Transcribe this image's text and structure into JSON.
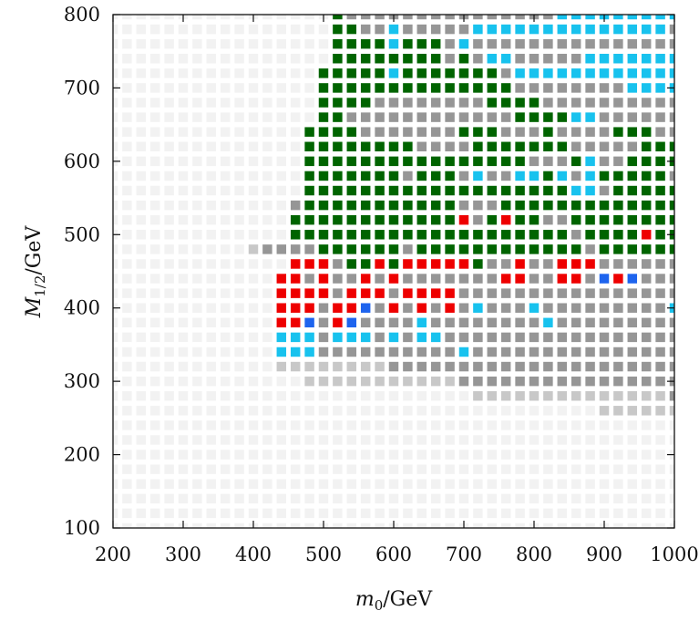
{
  "chart_data": {
    "type": "heatmap",
    "title": "",
    "xlabel": "m_0/GeV",
    "ylabel": "M_1/2/GeV",
    "xlabel_parts": {
      "main": "m",
      "sub": "0",
      "unit": "/GeV"
    },
    "ylabel_parts": {
      "main": "M",
      "sub": "1/2",
      "unit": "/GeV"
    },
    "xlim": [
      200,
      1000
    ],
    "ylim": [
      100,
      800
    ],
    "xticks": [
      200,
      300,
      400,
      500,
      600,
      700,
      800,
      900,
      1000
    ],
    "yticks": [
      100,
      200,
      300,
      400,
      500,
      600,
      700,
      800
    ],
    "grid_x": {
      "start": 200,
      "step": 20,
      "count": 41
    },
    "grid_y": {
      "start": 100,
      "step": 20,
      "count": 36
    },
    "categories": [
      {
        "code": "",
        "color": "#f2f2f2"
      },
      {
        "code": "G",
        "color": "#969696"
      },
      {
        "code": "L",
        "color": "#c8c8c8"
      },
      {
        "code": "D",
        "color": "#006400"
      },
      {
        "code": "R",
        "color": "#ee0000"
      },
      {
        "code": "C",
        "color": "#18c2ee"
      },
      {
        "code": "B",
        "color": "#1e64ee"
      },
      {
        "code": "Y",
        "color": "#f4f44c"
      }
    ],
    "default_code": "",
    "rows": [
      {
        "y": 800,
        "x_start": 520,
        "cells": "DGGGGGGGGGGGGGGGCCCCCCCCCCC"
      },
      {
        "y": 780,
        "x_start": 520,
        "cells": "DDGGCGGGGGCCCCCCCCCCCCCCGGG"
      },
      {
        "y": 760,
        "x_start": 520,
        "cells": "DDDDCDDDGCGGGGGGGGGGGGGGGGGG"
      },
      {
        "y": 740,
        "x_start": 520,
        "cells": "DDDDDDDDGDGCCGGGGGCCCCCCCCCC"
      },
      {
        "y": 720,
        "x_start": 500,
        "cells": "DDDDDCDDDDDDDGCCCCCCCCCCCCCGG"
      },
      {
        "y": 700,
        "x_start": 500,
        "cells": "DDDDDDDDDDDDDDGGGGGGGGCCCCCCCCC"
      },
      {
        "y": 680,
        "x_start": 500,
        "cells": "DDDDGGGGGGGGDDDDGGGGGGGGGGCCCC"
      },
      {
        "y": 660,
        "x_start": 500,
        "cells": "DDGGGGGGGGGGGGDDDDCCGGGGGGGCCCC"
      },
      {
        "y": 640,
        "x_start": 480,
        "cells": "DDDDGGGGGGGDDDGGGDGGGGDDDGGGGCCC"
      },
      {
        "y": 620,
        "x_start": 480,
        "cells": "DDDDDDDDGGGGDDDDDDDGGGGGDDDDGGGGG"
      },
      {
        "y": 600,
        "x_start": 480,
        "cells": "DDDDDDDDDDDDDDDDGGGDCGGDDDDDDGGGGG"
      },
      {
        "y": 580,
        "x_start": 480,
        "cells": "DDDDDDDGDDDGCGGCCDCGCDDDDDGCGGGG"
      },
      {
        "y": 560,
        "x_start": 480,
        "cells": "DDDDDDDDDDDDDDDDDDDCCGDDDDDGGGGG"
      },
      {
        "y": 540,
        "x_start": 460,
        "cells": "GDDDDDDDDDDDGGGDDDDDDDDDDDDDDDDDDCCC"
      },
      {
        "y": 520,
        "x_start": 460,
        "cells": "DDDDDDDDDDDDRGDRDDGGDDDDDDDDDDDGGGG"
      },
      {
        "y": 500,
        "x_start": 460,
        "cells": "DDDDDDDDDDDDDDDDDDDDGDDDDRDDDDDDDDD"
      },
      {
        "y": 480,
        "x_start": 400,
        "cells": "LGGGGDDDDDDGDDDDDDDDDDDDGDDDDDDDDDDDGGG"
      },
      {
        "y": 460,
        "x_start": 460,
        "cells": "RRRGDDRDRRRRRDGGRGGRRRGGGGGGGGGR"
      },
      {
        "y": 440,
        "x_start": 440,
        "cells": "RRGRGGRGRGGGGGGGRRGGRRGBRBGGGBBBRR"
      },
      {
        "y": 420,
        "x_start": 440,
        "cells": "RRRRGRRRGRRRRGGGGGGGGGGGGGGGGGGGGGG"
      },
      {
        "y": 400,
        "x_start": 440,
        "cells": "RRRGRRBGRGRGRGCGGGCGGGGGGGGGCGGGGCGG"
      },
      {
        "y": 380,
        "x_start": 440,
        "cells": "RRBGRBGGGGCGGGGGGGGCGGGGGGGGGGGGGGGGGC"
      },
      {
        "y": 360,
        "x_start": 440,
        "cells": "CCCGCCCGCGCCGGGGGGGGGGGGGGGGGGGGGGGGG"
      },
      {
        "y": 340,
        "x_start": 440,
        "cells": "CCCGGGGGGGGGGCGGGGGGGGGGGGGGGGGGGGGGGG"
      },
      {
        "y": 320,
        "x_start": 440,
        "cells": "LLLLLLLLGGGGGGGGGGGGGGGGGGGGGGGGGGGG"
      },
      {
        "y": 300,
        "x_start": 480,
        "cells": "LLLLLLLLLLLGGGGGGGGGGGGGGGGGGYYYY"
      },
      {
        "y": 280,
        "x_start": 720,
        "cells": "LLLLLLLLLLLLLLGYYYY"
      },
      {
        "y": 260,
        "x_start": 900,
        "cells": "LLLLLL"
      }
    ]
  }
}
